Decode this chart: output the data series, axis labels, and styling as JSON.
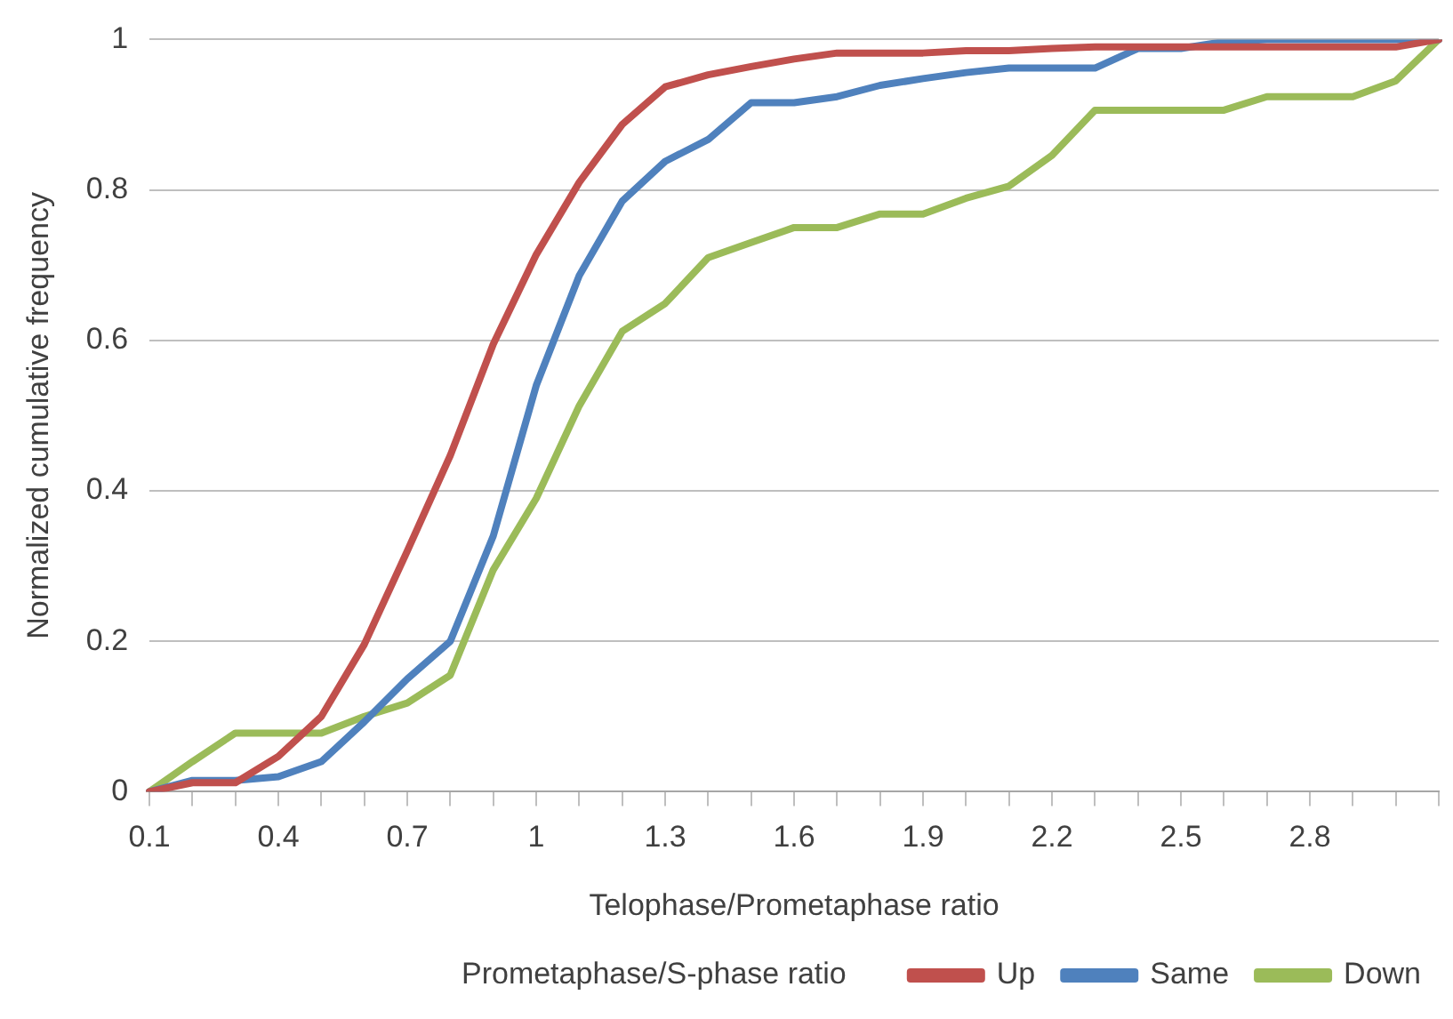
{
  "chart_data": {
    "type": "line",
    "xlabel": "Telophase/Prometaphase ratio",
    "ylabel": "Normalized cumulative frequency",
    "legend_title": "Prometaphase/S-phase ratio",
    "categories": [
      "0.1",
      null,
      null,
      "0.4",
      null,
      null,
      "0.7",
      null,
      null,
      "1",
      null,
      null,
      "1.3",
      null,
      null,
      "1.6",
      null,
      null,
      "1.9",
      null,
      null,
      "2.2",
      null,
      null,
      "2.5",
      null,
      null,
      "2.8",
      null,
      null,
      null
    ],
    "series": [
      {
        "name": "Up",
        "color": "#c0504d",
        "values": [
          0,
          0.012,
          0.012,
          0.047,
          0.1,
          0.196,
          0.32,
          0.447,
          0.595,
          0.714,
          0.81,
          0.887,
          0.937,
          0.953,
          0.964,
          0.974,
          0.982,
          0.982,
          0.982,
          0.985,
          0.985,
          0.988,
          0.99,
          0.99,
          0.99,
          0.99,
          0.99,
          0.99,
          0.99,
          0.99,
          1
        ]
      },
      {
        "name": "Same",
        "color": "#4f81bd",
        "values": [
          0,
          0.015,
          0.015,
          0.02,
          0.04,
          0.093,
          0.15,
          0.2,
          0.34,
          0.54,
          0.686,
          0.785,
          0.838,
          0.867,
          0.916,
          0.916,
          0.924,
          0.939,
          0.948,
          0.956,
          0.962,
          0.962,
          0.962,
          0.988,
          0.988,
          0.997,
          1,
          1,
          1,
          1,
          1
        ]
      },
      {
        "name": "Down",
        "color": "#9bbb59",
        "values": [
          0,
          0.04,
          0.078,
          0.078,
          0.078,
          0.1,
          0.118,
          0.155,
          0.295,
          0.39,
          0.513,
          0.612,
          0.649,
          0.71,
          0.73,
          0.75,
          0.75,
          0.768,
          0.768,
          0.789,
          0.805,
          0.846,
          0.906,
          0.906,
          0.906,
          0.906,
          0.924,
          0.924,
          0.924,
          0.945,
          1
        ]
      }
    ],
    "ylim": [
      0,
      1
    ],
    "yticks": [
      0,
      0.2,
      0.4,
      0.6,
      0.8,
      1
    ],
    "grid": "y",
    "legend": "bottom",
    "marker": "none",
    "line_style": "solid"
  }
}
